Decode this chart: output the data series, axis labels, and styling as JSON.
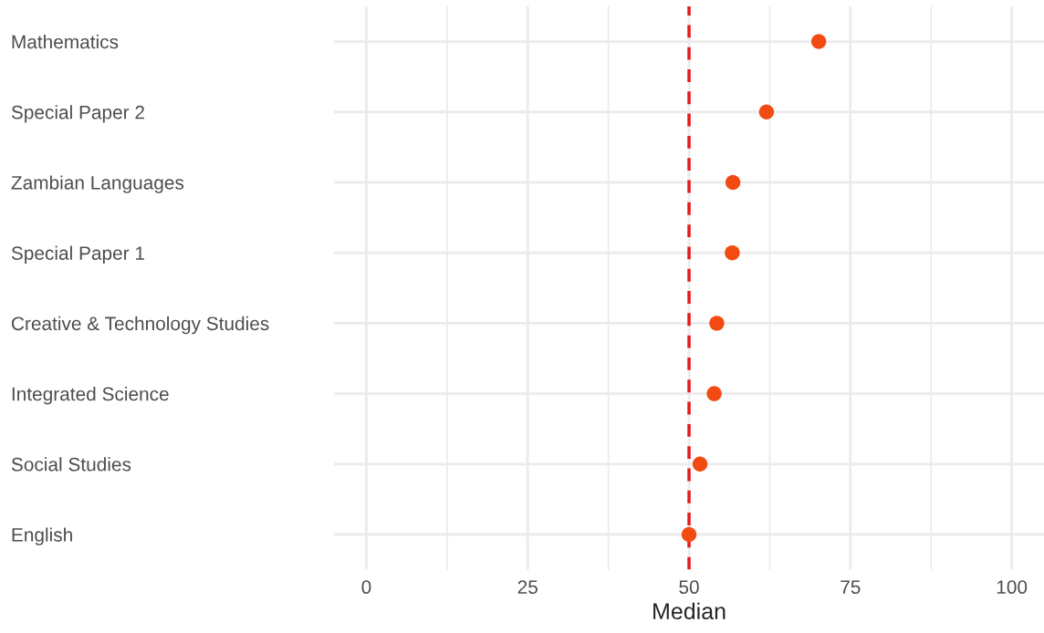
{
  "chart_data": {
    "type": "scatter",
    "orientation": "horizontal",
    "xlabel": "Median",
    "categories": [
      "Mathematics",
      "Special Paper 2",
      "Zambian Languages",
      "Special Paper 1",
      "Creative & Technology Studies",
      "Integrated Science",
      "Social Studies",
      "English"
    ],
    "series": [
      {
        "color": "#f24b12",
        "values": [
          70.1,
          62.0,
          56.8,
          56.7,
          54.3,
          53.9,
          51.7,
          50.0
        ]
      }
    ],
    "xlim": [
      -5,
      105
    ],
    "xticks": [
      0,
      25,
      50,
      75,
      100
    ],
    "grid": true,
    "marker": "circle",
    "ref_lines": [
      {
        "axis": "x",
        "value": 50,
        "color": "#e31a1c",
        "line_style": "dashed"
      }
    ]
  }
}
